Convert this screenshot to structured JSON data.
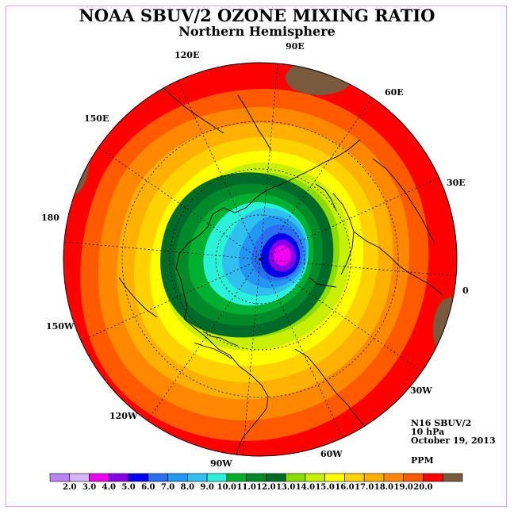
{
  "title": "NOAA SBUV/2 OZONE MIXING RATIO",
  "subtitle": "Northern Hemisphere",
  "longitude_labels": [
    "90E",
    "60E",
    "30E",
    "0",
    "30W",
    "60W",
    "90W",
    "120W",
    "150W",
    "180",
    "150E",
    "120E"
  ],
  "info": {
    "instrument": "N16 SBUV/2",
    "level": "10 hPa",
    "date": "October 19, 2013",
    "units": "PPM"
  },
  "colorbar": {
    "ticks": [
      "2.0",
      "3.0",
      "4.0",
      "5.0",
      "6.0",
      "7.0",
      "8.0",
      "9.0",
      "10.0",
      "11.0",
      "12.0",
      "13.0",
      "14.0",
      "15.0",
      "16.0",
      "17.0",
      "18.0",
      "19.0",
      "20.0"
    ],
    "colors": [
      "#b983f5",
      "#d9b3f7",
      "#f000f0",
      "#8a00e6",
      "#0000f0",
      "#2a6ff0",
      "#2196f3",
      "#2fc0f0",
      "#2af2d8",
      "#00b030",
      "#008a2a",
      "#006a28",
      "#8cdc00",
      "#c8f000",
      "#ffff00",
      "#ffd200",
      "#ffb000",
      "#ff8800",
      "#ff5a00",
      "#ff0000",
      "#7a5a3c"
    ]
  }
}
